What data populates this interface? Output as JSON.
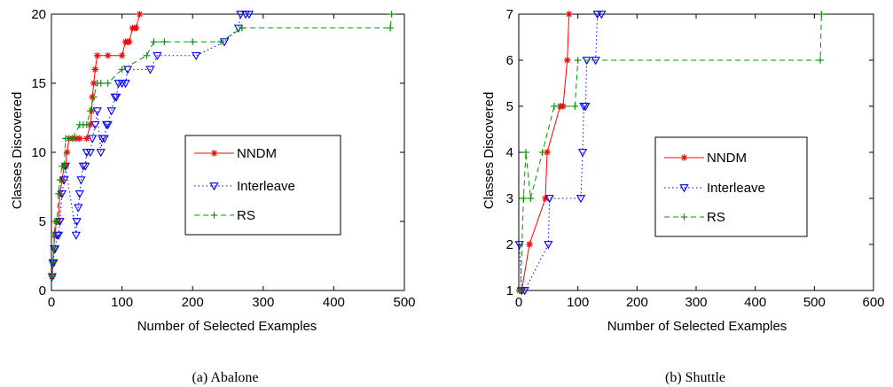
{
  "chart_data": [
    {
      "type": "line",
      "caption": "(a) Abalone",
      "xlabel": "Number of Selected Examples",
      "ylabel": "Classes Discovered",
      "xlim": [
        0,
        500
      ],
      "ylim": [
        0,
        20
      ],
      "xticks": [
        "0",
        "100",
        "200",
        "300",
        "400",
        "500"
      ],
      "yticks": [
        "0",
        "5",
        "10",
        "15",
        "20"
      ],
      "legend_position": "right",
      "series": [
        {
          "name": "NNDM",
          "color": "#ff0000",
          "marker": "asterisk",
          "dash": "solid",
          "x": [
            1,
            2,
            3,
            5,
            7,
            10,
            12,
            15,
            18,
            20,
            22,
            25,
            30,
            35,
            40,
            50,
            55,
            57,
            58,
            60,
            62,
            65,
            80,
            100,
            105,
            108,
            110,
            115,
            118,
            120,
            125
          ],
          "y": [
            1,
            2,
            3,
            4,
            5,
            5,
            7,
            8,
            9,
            9,
            10,
            11,
            11,
            11,
            11,
            11,
            12,
            13,
            14,
            15,
            16,
            17,
            17,
            17,
            18,
            18,
            18,
            19,
            19,
            19,
            20
          ]
        },
        {
          "name": "Interleave",
          "color": "#0000ff",
          "marker": "triangle-down",
          "dash": "dotted",
          "x": [
            1,
            2,
            3,
            4,
            5,
            8,
            10,
            12,
            15,
            18,
            20,
            35,
            36,
            38,
            40,
            42,
            45,
            48,
            50,
            55,
            58,
            62,
            65,
            70,
            72,
            75,
            78,
            80,
            85,
            90,
            92,
            95,
            100,
            105,
            108,
            140,
            150,
            205,
            245,
            265,
            268,
            275,
            280
          ],
          "y": [
            1,
            2,
            2,
            3,
            3,
            4,
            4,
            5,
            7,
            8,
            9,
            4,
            5,
            6,
            7,
            8,
            9,
            9,
            10,
            10,
            11,
            12,
            13,
            10,
            11,
            11,
            12,
            12,
            13,
            14,
            14,
            15,
            15,
            15,
            16,
            16,
            17,
            17,
            18,
            19,
            20,
            20,
            20
          ]
        },
        {
          "name": "RS",
          "color": "#009900",
          "marker": "plus",
          "dash": "dashed",
          "x": [
            1,
            2,
            3,
            4,
            5,
            8,
            10,
            12,
            15,
            18,
            20,
            25,
            30,
            40,
            45,
            50,
            55,
            60,
            65,
            70,
            80,
            100,
            135,
            145,
            160,
            200,
            240,
            270,
            480,
            482
          ],
          "y": [
            1,
            2,
            3,
            4,
            5,
            5,
            7,
            8,
            9,
            9,
            11,
            11,
            11,
            12,
            12,
            12,
            13,
            14,
            15,
            15,
            15,
            16,
            17,
            18,
            18,
            18,
            18,
            19,
            19,
            20
          ]
        }
      ]
    },
    {
      "type": "line",
      "caption": "(b) Shuttle",
      "xlabel": "Number of Selected Examples",
      "ylabel": "Classes Discovered",
      "xlim": [
        0,
        600
      ],
      "ylim": [
        1,
        7
      ],
      "xticks": [
        "0",
        "100",
        "200",
        "300",
        "400",
        "500",
        "600"
      ],
      "yticks": [
        "1",
        "2",
        "3",
        "4",
        "5",
        "6",
        "7"
      ],
      "legend_position": "right",
      "series": [
        {
          "name": "NNDM",
          "color": "#ff0000",
          "marker": "asterisk",
          "dash": "solid",
          "x": [
            1,
            5,
            18,
            45,
            48,
            70,
            75,
            82,
            85
          ],
          "y": [
            1,
            1,
            2,
            3,
            4,
            5,
            5,
            6,
            7
          ]
        },
        {
          "name": "Interleave",
          "color": "#0000ff",
          "marker": "triangle-down",
          "dash": "dotted",
          "x": [
            1,
            5,
            10,
            50,
            52,
            105,
            108,
            110,
            113,
            115,
            130,
            133,
            140
          ],
          "y": [
            2,
            1,
            1,
            2,
            3,
            3,
            4,
            5,
            5,
            6,
            6,
            7,
            7
          ]
        },
        {
          "name": "RS",
          "color": "#009900",
          "marker": "plus",
          "dash": "dashed",
          "x": [
            1,
            3,
            8,
            12,
            20,
            40,
            60,
            95,
            100,
            510,
            512
          ],
          "y": [
            1,
            1,
            3,
            4,
            3,
            4,
            5,
            5,
            6,
            6,
            7
          ]
        }
      ]
    }
  ]
}
